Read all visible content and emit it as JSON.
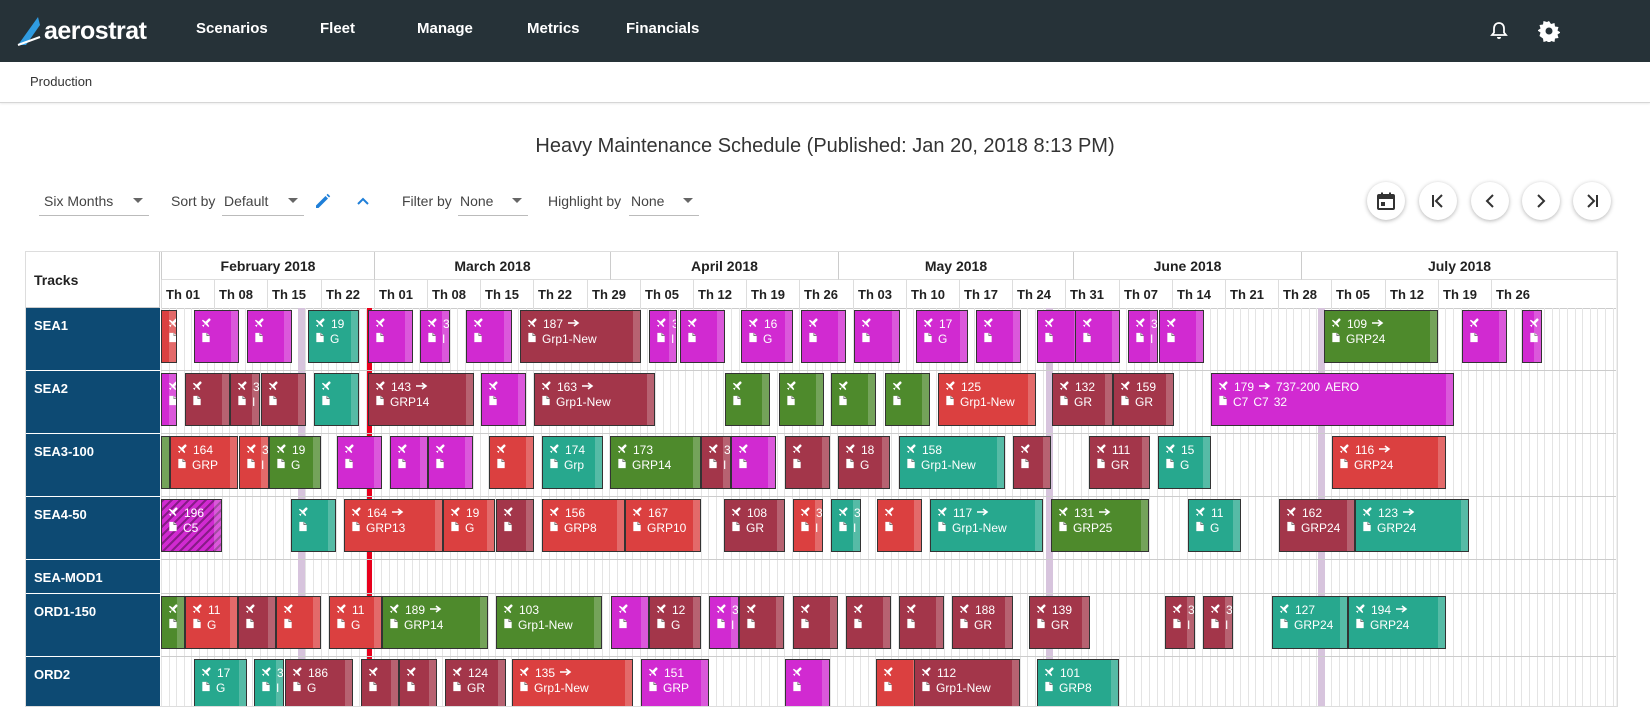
{
  "app": {
    "logo_text": "aerostrat"
  },
  "nav": {
    "items": [
      "Scenarios",
      "Fleet",
      "Manage",
      "Metrics",
      "Financials"
    ]
  },
  "breadcrumb": "Production",
  "title": "Heavy Maintenance Schedule (Published: Jan 20, 2018 8:13 PM)",
  "controls": {
    "range": "Six Months",
    "sort_label": "Sort by",
    "sort_value": "Default",
    "filter_label": "Filter by",
    "filter_value": "None",
    "highlight_label": "Highlight by",
    "highlight_value": "None"
  },
  "colors": {
    "topbar": "#263238",
    "track_label_bg": "#0d4a73",
    "today_line": "#e8001c",
    "magenta": "#d12ad1",
    "maroon": "#a3364a",
    "red": "#db4040",
    "green": "#4e8a2c",
    "teal": "#27a88e"
  },
  "gantt": {
    "tracks_header": "Tracks",
    "months": [
      "February 2018",
      "March 2018",
      "April 2018",
      "May 2018",
      "June 2018",
      "July 2018"
    ],
    "weeks": [
      "Th 01",
      "Th 08",
      "Th 15",
      "Th 22",
      "Th 01",
      "Th 08",
      "Th 15",
      "Th 22",
      "Th 29",
      "Th 05",
      "Th 12",
      "Th 19",
      "Th 26",
      "Th 03",
      "Th 10",
      "Th 17",
      "Th 24",
      "Th 31",
      "Th 07",
      "Th 14",
      "Th 21",
      "Th 28",
      "Th 05",
      "Th 12",
      "Th 19",
      "Th 26"
    ],
    "tracks": [
      "SEA1",
      "SEA2",
      "SEA3-100",
      "SEA4-50",
      "SEA-MOD1",
      "ORD1-150",
      "ORD2"
    ]
  },
  "bars": [
    {
      "row": 0,
      "x": 0,
      "w": 16,
      "c": "red",
      "t1": "",
      "t2": ""
    },
    {
      "row": 0,
      "x": 33,
      "w": 45,
      "c": "magenta",
      "t1": "",
      "t2": ""
    },
    {
      "row": 0,
      "x": 86,
      "w": 45,
      "c": "magenta",
      "t1": "",
      "t2": ""
    },
    {
      "row": 0,
      "x": 147,
      "w": 51,
      "c": "teal",
      "t1": "19",
      "t2": "G"
    },
    {
      "row": 0,
      "x": 207,
      "w": 45,
      "c": "magenta",
      "t1": "",
      "t2": ""
    },
    {
      "row": 0,
      "x": 259,
      "w": 30,
      "c": "magenta",
      "t1": "3",
      "t2": "I"
    },
    {
      "row": 0,
      "x": 305,
      "w": 46,
      "c": "magenta",
      "t1": "",
      "t2": ""
    },
    {
      "row": 0,
      "x": 359,
      "w": 121,
      "c": "maroon",
      "t1": "187",
      "t2": "Grp1-New",
      "ic": true
    },
    {
      "row": 0,
      "x": 488,
      "w": 28,
      "c": "magenta",
      "t1": "3",
      "t2": "I"
    },
    {
      "row": 0,
      "x": 519,
      "w": 45,
      "c": "magenta",
      "t1": "",
      "t2": ""
    },
    {
      "row": 0,
      "x": 580,
      "w": 52,
      "c": "magenta",
      "t1": "16",
      "t2": "G"
    },
    {
      "row": 0,
      "x": 640,
      "w": 45,
      "c": "magenta",
      "t1": "",
      "t2": ""
    },
    {
      "row": 0,
      "x": 693,
      "w": 46,
      "c": "magenta",
      "t1": "",
      "t2": ""
    },
    {
      "row": 0,
      "x": 755,
      "w": 52,
      "c": "magenta",
      "t1": "17",
      "t2": "G"
    },
    {
      "row": 0,
      "x": 815,
      "w": 45,
      "c": "magenta",
      "t1": "",
      "t2": ""
    },
    {
      "row": 0,
      "x": 876,
      "w": 45,
      "c": "magenta",
      "t1": "",
      "t2": ""
    },
    {
      "row": 0,
      "x": 914,
      "w": 45,
      "c": "magenta",
      "t1": "",
      "t2": ""
    },
    {
      "row": 0,
      "x": 967,
      "w": 30,
      "c": "magenta",
      "t1": "3",
      "t2": "I"
    },
    {
      "row": 0,
      "x": 998,
      "w": 45,
      "c": "magenta",
      "t1": "",
      "t2": ""
    },
    {
      "row": 0,
      "x": 1163,
      "w": 114,
      "c": "green",
      "t1": "109",
      "t2": "GRP24",
      "ic": true
    },
    {
      "row": 0,
      "x": 1301,
      "w": 45,
      "c": "magenta",
      "t1": "",
      "t2": ""
    },
    {
      "row": 0,
      "x": 1361,
      "w": 20,
      "c": "magenta",
      "t1": "",
      "t2": ""
    },
    {
      "row": 1,
      "x": 0,
      "w": 16,
      "c": "magenta",
      "t1": "",
      "t2": ""
    },
    {
      "row": 1,
      "x": 24,
      "w": 45,
      "c": "maroon",
      "t1": "",
      "t2": ""
    },
    {
      "row": 1,
      "x": 69,
      "w": 30,
      "c": "maroon",
      "t1": "3",
      "t2": "I"
    },
    {
      "row": 1,
      "x": 100,
      "w": 45,
      "c": "maroon",
      "t1": "",
      "t2": ""
    },
    {
      "row": 1,
      "x": 153,
      "w": 45,
      "c": "teal",
      "t1": "",
      "t2": ""
    },
    {
      "row": 1,
      "x": 207,
      "w": 106,
      "c": "maroon",
      "t1": "143",
      "t2": "GRP14",
      "ic": true
    },
    {
      "row": 1,
      "x": 320,
      "w": 45,
      "c": "magenta",
      "t1": "",
      "t2": ""
    },
    {
      "row": 1,
      "x": 373,
      "w": 121,
      "c": "maroon",
      "t1": "163",
      "t2": "Grp1-New",
      "ic": true
    },
    {
      "row": 1,
      "x": 564,
      "w": 45,
      "c": "green",
      "t1": "",
      "t2": ""
    },
    {
      "row": 1,
      "x": 618,
      "w": 45,
      "c": "green",
      "t1": "",
      "t2": ""
    },
    {
      "row": 1,
      "x": 670,
      "w": 45,
      "c": "green",
      "t1": "",
      "t2": ""
    },
    {
      "row": 1,
      "x": 724,
      "w": 45,
      "c": "green",
      "t1": "",
      "t2": ""
    },
    {
      "row": 1,
      "x": 777,
      "w": 98,
      "c": "red",
      "t1": "125",
      "t2": "Grp1-New"
    },
    {
      "row": 1,
      "x": 891,
      "w": 61,
      "c": "maroon",
      "t1": "132",
      "t2": "GR"
    },
    {
      "row": 1,
      "x": 952,
      "w": 61,
      "c": "maroon",
      "t1": "159",
      "t2": "GR"
    },
    {
      "row": 1,
      "x": 1050,
      "w": 243,
      "c": "magenta",
      "t1": "179",
      "t2": "C7",
      "ic": true,
      "extra1": "737-200",
      "extra2": "C7",
      "extra3": "AERO",
      "extra4": "32"
    },
    {
      "row": 2,
      "x": 0,
      "w": 9,
      "c": "green",
      "t1": "",
      "t2": ""
    },
    {
      "row": 2,
      "x": 9,
      "w": 68,
      "c": "red",
      "t1": "164",
      "t2": "GRP"
    },
    {
      "row": 2,
      "x": 78,
      "w": 30,
      "c": "red",
      "t1": "3",
      "t2": "I"
    },
    {
      "row": 2,
      "x": 108,
      "w": 52,
      "c": "green",
      "t1": "19",
      "t2": "G"
    },
    {
      "row": 2,
      "x": 176,
      "w": 45,
      "c": "magenta",
      "t1": "",
      "t2": ""
    },
    {
      "row": 2,
      "x": 229,
      "w": 38,
      "c": "magenta",
      "t1": "",
      "t2": ""
    },
    {
      "row": 2,
      "x": 267,
      "w": 45,
      "c": "magenta",
      "t1": "",
      "t2": ""
    },
    {
      "row": 2,
      "x": 328,
      "w": 45,
      "c": "red",
      "t1": "",
      "t2": ""
    },
    {
      "row": 2,
      "x": 381,
      "w": 61,
      "c": "teal",
      "t1": "174",
      "t2": "Grp"
    },
    {
      "row": 2,
      "x": 449,
      "w": 91,
      "c": "green",
      "t1": "173",
      "t2": "GRP14"
    },
    {
      "row": 2,
      "x": 540,
      "w": 30,
      "c": "maroon",
      "t1": "3",
      "t2": "I"
    },
    {
      "row": 2,
      "x": 570,
      "w": 45,
      "c": "magenta",
      "t1": "",
      "t2": ""
    },
    {
      "row": 2,
      "x": 624,
      "w": 45,
      "c": "maroon",
      "t1": "",
      "t2": ""
    },
    {
      "row": 2,
      "x": 677,
      "w": 52,
      "c": "maroon",
      "t1": "18",
      "t2": "G"
    },
    {
      "row": 2,
      "x": 738,
      "w": 106,
      "c": "teal",
      "t1": "158",
      "t2": "Grp1-New"
    },
    {
      "row": 2,
      "x": 852,
      "w": 38,
      "c": "maroon",
      "t1": "",
      "t2": ""
    },
    {
      "row": 2,
      "x": 928,
      "w": 61,
      "c": "maroon",
      "t1": "111",
      "t2": "GR"
    },
    {
      "row": 2,
      "x": 997,
      "w": 53,
      "c": "teal",
      "t1": "15",
      "t2": "G"
    },
    {
      "row": 2,
      "x": 1171,
      "w": 114,
      "c": "red",
      "t1": "116",
      "t2": "GRP24",
      "ic": true
    },
    {
      "row": 3,
      "x": 0,
      "w": 61,
      "c": "magenta",
      "t1": "196",
      "t2": "C5",
      "hatch": true
    },
    {
      "row": 3,
      "x": 130,
      "w": 45,
      "c": "teal",
      "t1": "",
      "t2": ""
    },
    {
      "row": 3,
      "x": 183,
      "w": 99,
      "c": "red",
      "t1": "164",
      "t2": "GRP13",
      "ic": true
    },
    {
      "row": 3,
      "x": 282,
      "w": 52,
      "c": "red",
      "t1": "19",
      "t2": "G"
    },
    {
      "row": 3,
      "x": 335,
      "w": 38,
      "c": "maroon",
      "t1": "",
      "t2": ""
    },
    {
      "row": 3,
      "x": 381,
      "w": 83,
      "c": "red",
      "t1": "156",
      "t2": "GRP8"
    },
    {
      "row": 3,
      "x": 464,
      "w": 76,
      "c": "red",
      "t1": "167",
      "t2": "GRP10"
    },
    {
      "row": 3,
      "x": 563,
      "w": 61,
      "c": "maroon",
      "t1": "108",
      "t2": "GR"
    },
    {
      "row": 3,
      "x": 632,
      "w": 30,
      "c": "red",
      "t1": "3",
      "t2": "I"
    },
    {
      "row": 3,
      "x": 670,
      "w": 30,
      "c": "teal",
      "t1": "3",
      "t2": "I"
    },
    {
      "row": 3,
      "x": 716,
      "w": 45,
      "c": "red",
      "t1": "",
      "t2": ""
    },
    {
      "row": 3,
      "x": 769,
      "w": 113,
      "c": "teal",
      "t1": "117",
      "t2": "Grp1-New",
      "ic": true
    },
    {
      "row": 3,
      "x": 890,
      "w": 98,
      "c": "green",
      "t1": "131",
      "t2": "GRP25",
      "ic": true
    },
    {
      "row": 3,
      "x": 1027,
      "w": 53,
      "c": "teal",
      "t1": "11",
      "t2": "G"
    },
    {
      "row": 3,
      "x": 1118,
      "w": 76,
      "c": "maroon",
      "t1": "162",
      "t2": "GRP24"
    },
    {
      "row": 3,
      "x": 1194,
      "w": 114,
      "c": "teal",
      "t1": "123",
      "t2": "GRP24",
      "ic": true
    },
    {
      "row": 5,
      "x": 0,
      "w": 24,
      "c": "green",
      "t1": "",
      "t2": ""
    },
    {
      "row": 5,
      "x": 24,
      "w": 53,
      "c": "red",
      "t1": "11",
      "t2": "G"
    },
    {
      "row": 5,
      "x": 77,
      "w": 38,
      "c": "maroon",
      "t1": "",
      "t2": ""
    },
    {
      "row": 5,
      "x": 115,
      "w": 45,
      "c": "red",
      "t1": "",
      "t2": ""
    },
    {
      "row": 5,
      "x": 168,
      "w": 53,
      "c": "red",
      "t1": "11",
      "t2": "G"
    },
    {
      "row": 5,
      "x": 221,
      "w": 106,
      "c": "green",
      "t1": "189",
      "t2": "GRP14",
      "ic": true
    },
    {
      "row": 5,
      "x": 335,
      "w": 106,
      "c": "green",
      "t1": "103",
      "t2": "Grp1-New"
    },
    {
      "row": 5,
      "x": 450,
      "w": 38,
      "c": "magenta",
      "t1": "",
      "t2": ""
    },
    {
      "row": 5,
      "x": 488,
      "w": 52,
      "c": "maroon",
      "t1": "12",
      "t2": "G"
    },
    {
      "row": 5,
      "x": 548,
      "w": 30,
      "c": "magenta",
      "t1": "3",
      "t2": "I"
    },
    {
      "row": 5,
      "x": 578,
      "w": 45,
      "c": "maroon",
      "t1": "",
      "t2": ""
    },
    {
      "row": 5,
      "x": 632,
      "w": 45,
      "c": "maroon",
      "t1": "",
      "t2": ""
    },
    {
      "row": 5,
      "x": 685,
      "w": 45,
      "c": "maroon",
      "t1": "",
      "t2": ""
    },
    {
      "row": 5,
      "x": 738,
      "w": 45,
      "c": "maroon",
      "t1": "",
      "t2": ""
    },
    {
      "row": 5,
      "x": 791,
      "w": 61,
      "c": "maroon",
      "t1": "188",
      "t2": "GR"
    },
    {
      "row": 5,
      "x": 868,
      "w": 61,
      "c": "maroon",
      "t1": "139",
      "t2": "GR"
    },
    {
      "row": 5,
      "x": 1004,
      "w": 30,
      "c": "maroon",
      "t1": "3",
      "t2": "I"
    },
    {
      "row": 5,
      "x": 1042,
      "w": 30,
      "c": "maroon",
      "t1": "3",
      "t2": "I"
    },
    {
      "row": 5,
      "x": 1111,
      "w": 76,
      "c": "teal",
      "t1": "127",
      "t2": "GRP24"
    },
    {
      "row": 5,
      "x": 1187,
      "w": 98,
      "c": "teal",
      "t1": "194",
      "t2": "GRP24",
      "ic": true
    },
    {
      "row": 6,
      "x": 33,
      "w": 53,
      "c": "teal",
      "t1": "17",
      "t2": "G"
    },
    {
      "row": 6,
      "x": 93,
      "w": 30,
      "c": "teal",
      "t1": "3",
      "t2": "I"
    },
    {
      "row": 6,
      "x": 124,
      "w": 68,
      "c": "maroon",
      "t1": "186",
      "t2": "G"
    },
    {
      "row": 6,
      "x": 200,
      "w": 38,
      "c": "maroon",
      "t1": "",
      "t2": ""
    },
    {
      "row": 6,
      "x": 238,
      "w": 38,
      "c": "maroon",
      "t1": "",
      "t2": ""
    },
    {
      "row": 6,
      "x": 284,
      "w": 61,
      "c": "maroon",
      "t1": "124",
      "t2": "GR"
    },
    {
      "row": 6,
      "x": 351,
      "w": 121,
      "c": "red",
      "t1": "135",
      "t2": "Grp1-New",
      "ic": true
    },
    {
      "row": 6,
      "x": 480,
      "w": 68,
      "c": "magenta",
      "t1": "151",
      "t2": "GRP"
    },
    {
      "row": 6,
      "x": 624,
      "w": 45,
      "c": "magenta",
      "t1": "",
      "t2": ""
    },
    {
      "row": 6,
      "x": 715,
      "w": 45,
      "c": "red",
      "t1": "",
      "t2": ""
    },
    {
      "row": 6,
      "x": 753,
      "w": 106,
      "c": "maroon",
      "t1": "112",
      "t2": "Grp1-New"
    },
    {
      "row": 6,
      "x": 876,
      "w": 82,
      "c": "teal",
      "t1": "101",
      "t2": "GRP8"
    }
  ]
}
